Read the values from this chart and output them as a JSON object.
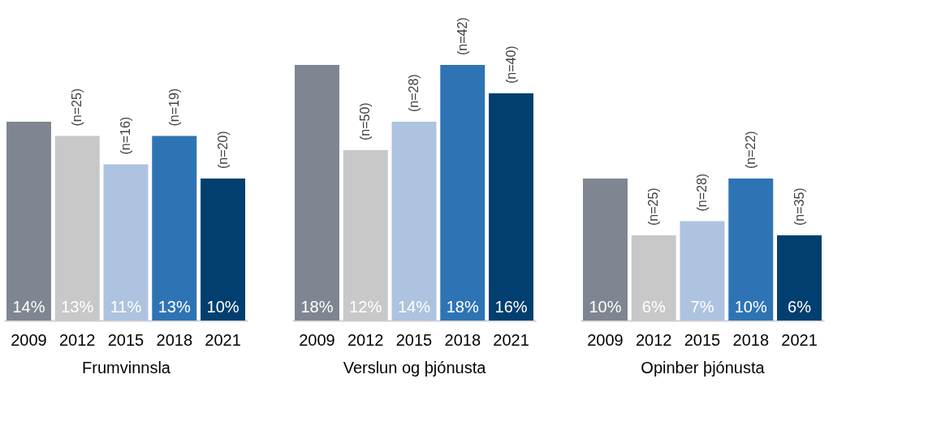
{
  "chart_data": [
    {
      "type": "bar",
      "xlabel": "Frumvinnsla",
      "categories": [
        "2009",
        "2012",
        "2015",
        "2018",
        "2021"
      ],
      "values": [
        14,
        13,
        11,
        13,
        10
      ],
      "value_labels": [
        "14%",
        "13%",
        "11%",
        "13%",
        "10%"
      ],
      "colors": [
        "#7f8591",
        "#c8c8c8",
        "#adc3e0",
        "#2e74b5",
        "#003f6f"
      ],
      "tick_labels": "x",
      "annotations": [
        {
          "text": "(n=25)",
          "x": "2012",
          "y": 13
        },
        {
          "text": "(n=16)",
          "x": "2015",
          "y": 11
        },
        {
          "text": "(n=19)",
          "x": "2018",
          "y": 13
        },
        {
          "text": "(n=20)",
          "x": "2021",
          "y": 10
        }
      ]
    },
    {
      "type": "bar",
      "xlabel": "Verslun og þjónusta",
      "categories": [
        "2009",
        "2012",
        "2015",
        "2018",
        "2021"
      ],
      "values": [
        18,
        12,
        14,
        18,
        16
      ],
      "value_labels": [
        "18%",
        "12%",
        "14%",
        "18%",
        "16%"
      ],
      "colors": [
        "#7f8591",
        "#c8c8c8",
        "#adc3e0",
        "#2e74b5",
        "#003f6f"
      ],
      "tick_labels": "x",
      "annotations": [
        {
          "text": "(n=50)",
          "x": "2012",
          "y": 12
        },
        {
          "text": "(n=28)",
          "x": "2015",
          "y": 14
        },
        {
          "text": "(n=42)",
          "x": "2018",
          "y": 18
        },
        {
          "text": "(n=40)",
          "x": "2021",
          "y": 16
        }
      ]
    },
    {
      "type": "bar",
      "xlabel": "Opinber þjónusta",
      "categories": [
        "2009",
        "2012",
        "2015",
        "2018",
        "2021"
      ],
      "values": [
        10,
        6,
        7,
        10,
        6
      ],
      "value_labels": [
        "10%",
        "6%",
        "7%",
        "10%",
        "6%"
      ],
      "colors": [
        "#7f8591",
        "#c8c8c8",
        "#adc3e0",
        "#2e74b5",
        "#003f6f"
      ],
      "tick_labels": "x",
      "annotations": [
        {
          "text": "(n=25)",
          "x": "2012",
          "y": 6
        },
        {
          "text": "(n=28)",
          "x": "2015",
          "y": 7
        },
        {
          "text": "(n=22)",
          "x": "2018",
          "y": 10
        },
        {
          "text": "(n=35)",
          "x": "2021",
          "y": 6
        }
      ]
    }
  ]
}
